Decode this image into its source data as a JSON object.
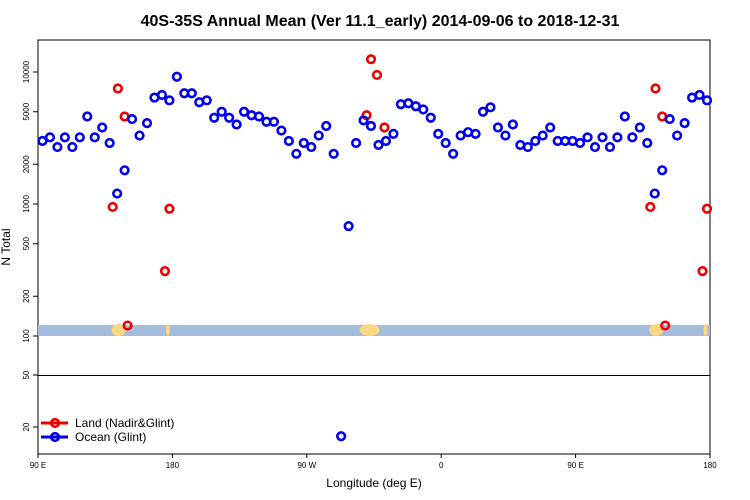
{
  "chart_data": {
    "type": "scatter",
    "title": "40S-35S Annual Mean (Ver 11.1_early)   2014-09-06 to 2018-12-31",
    "xlabel": "Longitude (deg E)",
    "ylabel": "N Total",
    "y_scale": "log",
    "x_ticks": [
      {
        "value": 90,
        "label": "90 E"
      },
      {
        "value": 180,
        "label": "180"
      },
      {
        "value": 270,
        "label": "90 W"
      },
      {
        "value": 360,
        "label": "0"
      },
      {
        "value": 450,
        "label": "90 E"
      },
      {
        "value": 540,
        "label": "180"
      }
    ],
    "y_ticks": [
      {
        "value": 10000,
        "label": "10000"
      },
      {
        "value": 5000,
        "label": "5000"
      },
      {
        "value": 2000,
        "label": "2000"
      },
      {
        "value": 1000,
        "label": "1000"
      },
      {
        "value": 500,
        "label": "500"
      },
      {
        "value": 200,
        "label": "200"
      },
      {
        "value": 100,
        "label": "100"
      },
      {
        "value": 50,
        "label": "50"
      },
      {
        "value": 20,
        "label": "20"
      }
    ],
    "series": [
      {
        "name": "Land (Nadir&Glint)",
        "color": "#ee0000",
        "x": [
          140,
          143.5,
          148,
          150,
          175,
          178,
          310,
          313,
          317,
          322,
          500,
          503.5,
          508,
          510,
          535,
          538
        ],
        "y": [
          950,
          7500,
          4600,
          120,
          310,
          920,
          4700,
          12500,
          9500,
          3800,
          950,
          7500,
          4600,
          120,
          310,
          920
        ]
      },
      {
        "name": "Ocean (Glint)",
        "color": "#0000ee",
        "x": [
          93,
          98,
          103,
          108,
          113,
          118,
          123,
          128,
          133,
          138,
          143,
          148,
          153,
          158,
          163,
          168,
          173,
          178,
          183,
          188,
          193,
          198,
          203,
          208,
          213,
          218,
          223,
          228,
          233,
          238,
          243,
          248,
          253,
          258,
          263,
          268,
          273,
          278,
          283,
          288,
          293,
          298,
          303,
          308,
          313,
          318,
          323,
          328,
          333,
          338,
          343,
          348,
          353,
          358,
          363,
          368,
          373,
          378,
          383,
          388,
          393,
          398,
          403,
          408,
          413,
          418,
          423,
          428,
          433,
          438,
          443,
          448,
          453,
          458,
          463,
          468,
          473,
          478,
          483,
          488,
          493,
          498,
          503,
          508,
          513,
          518,
          523,
          528,
          533,
          538
        ],
        "y": [
          3000,
          3200,
          2700,
          3200,
          2700,
          3200,
          4600,
          3200,
          3800,
          2900,
          1200,
          1800,
          4400,
          3300,
          4100,
          6400,
          6700,
          6100,
          9200,
          6900,
          6900,
          5900,
          6100,
          4500,
          5000,
          4500,
          4000,
          5000,
          4700,
          4600,
          4200,
          4200,
          3600,
          3000,
          2400,
          2900,
          2700,
          3300,
          3900,
          2400,
          17,
          680,
          2900,
          4300,
          3900,
          2800,
          3000,
          3400,
          5700,
          5800,
          5500,
          5200,
          4500,
          3400,
          2900,
          2400,
          3300,
          3500,
          3400,
          5000,
          5400,
          3800,
          3300,
          4000,
          2800,
          2700,
          3000,
          3300,
          3800,
          3000,
          3000,
          3000,
          2900,
          3200,
          2700,
          3200,
          2700,
          3200,
          4600,
          3200,
          3800,
          2900,
          1200,
          1800,
          4400,
          3300,
          4100,
          6400,
          6700,
          6100
        ]
      }
    ],
    "legend": {
      "position": "bottom-left",
      "entries": [
        "Land (Nadir&Glint)",
        "Ocean (Glint)"
      ]
    },
    "grid": false,
    "land_strip_color": "#fdd882",
    "ocean_strip_color": "#a6bcdc"
  }
}
